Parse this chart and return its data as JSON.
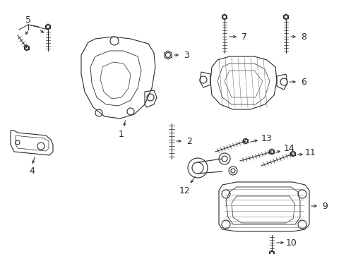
{
  "background_color": "#ffffff",
  "figsize": [
    4.9,
    3.6
  ],
  "dpi": 100,
  "gray": "#2a2a2a",
  "light": "#777777"
}
